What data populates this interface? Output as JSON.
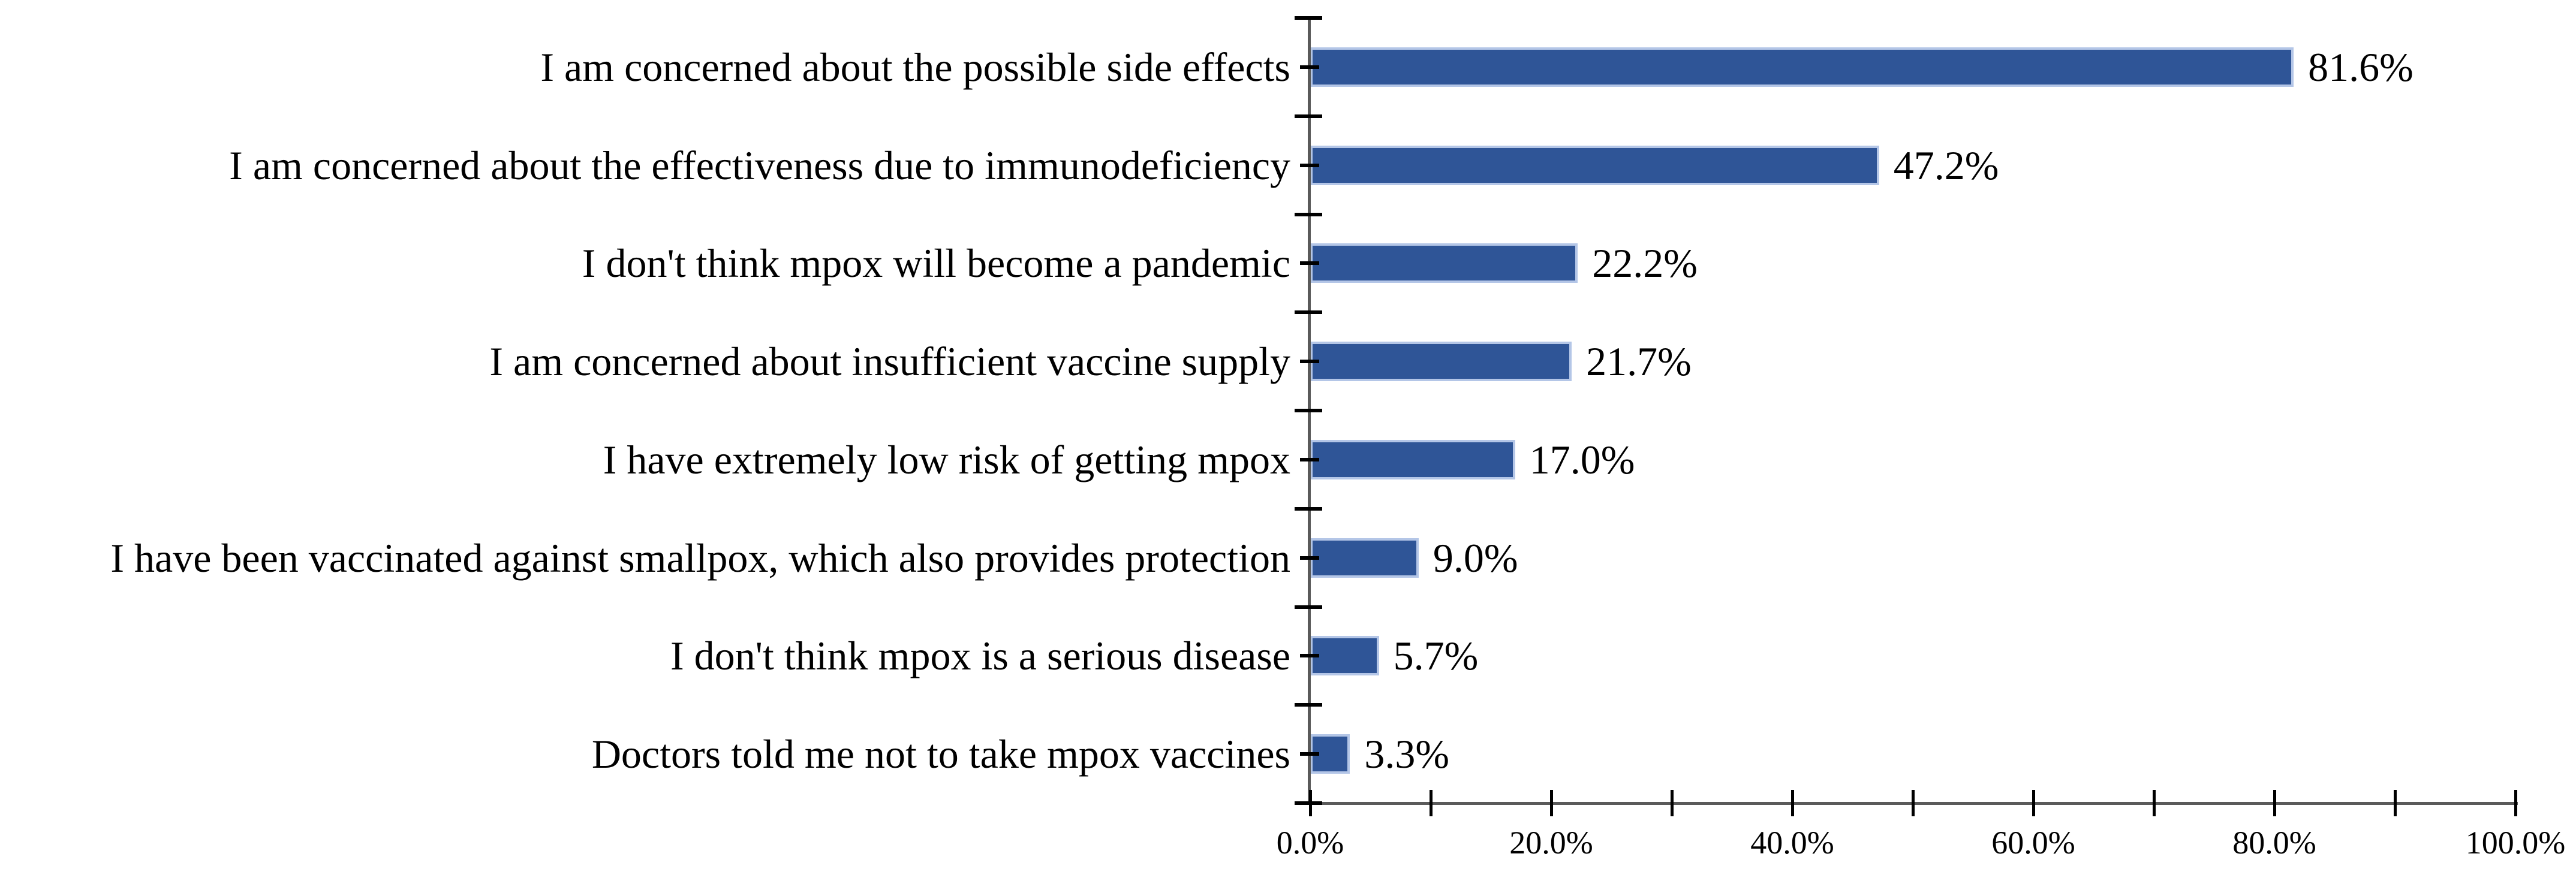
{
  "chart_data": {
    "type": "bar",
    "orientation": "horizontal",
    "title": "",
    "xlabel": "",
    "ylabel": "",
    "categories": [
      "I am concerned about the possible side effects",
      "I am concerned about the effectiveness due to immunodeficiency",
      "I don't think mpox will become a pandemic",
      "I am concerned about insufficient vaccine supply",
      "I have extremely low risk of getting mpox",
      "I have been vaccinated against smallpox, which also provides protection",
      "I don't think mpox is a serious disease",
      "Doctors told me not to take mpox vaccines"
    ],
    "values": [
      81.6,
      47.2,
      22.2,
      21.7,
      17.0,
      9.0,
      5.7,
      3.3
    ],
    "value_labels": [
      "81.6%",
      "47.2%",
      "22.2%",
      "21.7%",
      "17.0%",
      "9.0%",
      "5.7%",
      "3.3%"
    ],
    "xlim": [
      0,
      100
    ],
    "x_major_tick_step": 20,
    "x_minor_tick_step": 10,
    "x_tick_labels": [
      "0.0%",
      "20.0%",
      "40.0%",
      "60.0%",
      "80.0%",
      "100.0%"
    ],
    "grid": false,
    "legend": false,
    "colors": {
      "bar_fill": "#2F5597",
      "bar_border": "#B4C6E7",
      "axis_line": "#5A5A5A",
      "tick": "#000000",
      "text": "#000000",
      "background": "#FFFFFF"
    }
  }
}
